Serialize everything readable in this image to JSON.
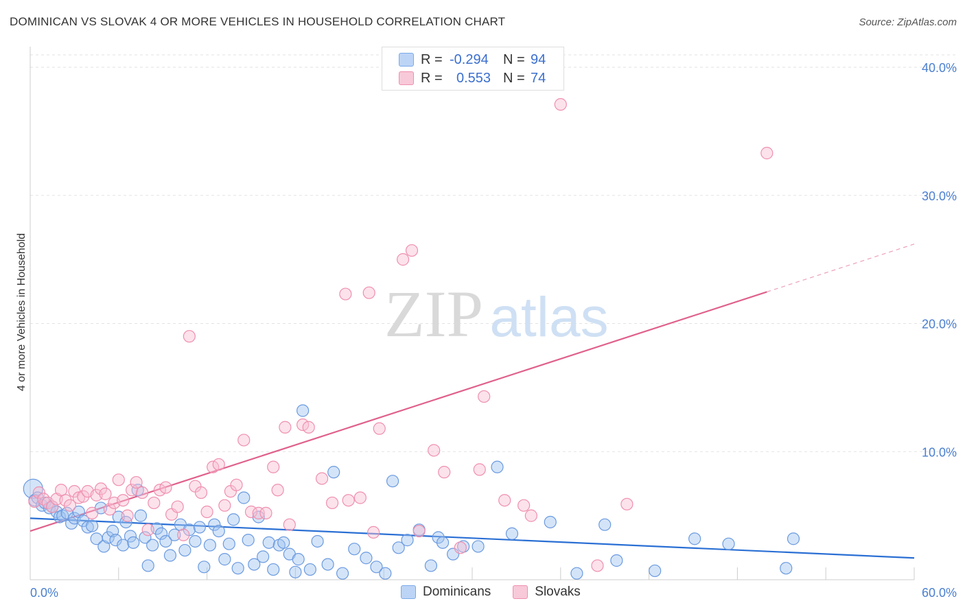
{
  "title": "DOMINICAN VS SLOVAK 4 OR MORE VEHICLES IN HOUSEHOLD CORRELATION CHART",
  "source": "Source: ZipAtlas.com",
  "watermark": {
    "zip": "ZIP",
    "atlas": "atlas"
  },
  "legend": {
    "rows": [
      {
        "r_label": "R =",
        "r_value": "-0.294",
        "n_label": "N =",
        "n_value": "94",
        "color": "#7aaae8",
        "fill": "#bcd4f6"
      },
      {
        "r_label": "R =",
        "r_value": "0.553",
        "n_label": "N =",
        "n_value": "74",
        "color": "#ef8fae",
        "fill": "#f8c9d8"
      }
    ],
    "bottom": [
      "Dominicans",
      "Slovaks"
    ]
  },
  "chart_data": {
    "type": "scatter",
    "ylabel": "4 or more Vehicles in Household",
    "xlim": [
      0,
      60
    ],
    "ylim": [
      0,
      40
    ],
    "x_tick_labels": [
      "0.0%",
      "60.0%"
    ],
    "y_ticks": [
      10,
      20,
      30,
      40
    ],
    "y_tick_labels": [
      "10.0%",
      "20.0%",
      "30.0%",
      "40.0%"
    ],
    "grid": true,
    "series": [
      {
        "name": "Dominicans",
        "color": "#6a9ae0",
        "fill": "rgba(160,195,240,0.45)",
        "trend": {
          "x0": 0,
          "y0": 4.8,
          "x1": 60,
          "y1": 1.7,
          "dash_from": 60
        },
        "trend_color": "#2a6fd4",
        "points": [
          [
            0.2,
            7.1
          ],
          [
            0.3,
            6.2
          ],
          [
            0.5,
            6.4
          ],
          [
            0.8,
            5.8
          ],
          [
            1.0,
            6.0
          ],
          [
            1.3,
            5.6
          ],
          [
            1.5,
            5.7
          ],
          [
            1.8,
            5.3
          ],
          [
            2.0,
            4.9
          ],
          [
            2.2,
            5.0
          ],
          [
            2.5,
            5.2
          ],
          [
            2.8,
            4.4
          ],
          [
            3.0,
            4.8
          ],
          [
            3.3,
            5.3
          ],
          [
            3.6,
            4.6
          ],
          [
            3.9,
            4.1
          ],
          [
            4.2,
            4.2
          ],
          [
            4.5,
            3.2
          ],
          [
            4.8,
            5.6
          ],
          [
            5.0,
            2.6
          ],
          [
            5.3,
            3.3
          ],
          [
            5.6,
            3.8
          ],
          [
            5.8,
            3.1
          ],
          [
            6.0,
            4.9
          ],
          [
            6.3,
            2.7
          ],
          [
            6.5,
            4.5
          ],
          [
            6.8,
            3.4
          ],
          [
            7.0,
            2.9
          ],
          [
            7.3,
            7.0
          ],
          [
            7.5,
            5.0
          ],
          [
            7.8,
            3.3
          ],
          [
            8.0,
            1.1
          ],
          [
            8.3,
            2.7
          ],
          [
            8.6,
            4.0
          ],
          [
            8.9,
            3.6
          ],
          [
            9.2,
            3.0
          ],
          [
            9.5,
            1.9
          ],
          [
            9.8,
            3.5
          ],
          [
            10.2,
            4.3
          ],
          [
            10.5,
            2.3
          ],
          [
            10.8,
            3.9
          ],
          [
            11.2,
            3.0
          ],
          [
            11.5,
            4.1
          ],
          [
            11.8,
            1.0
          ],
          [
            12.2,
            2.7
          ],
          [
            12.5,
            4.3
          ],
          [
            12.8,
            3.8
          ],
          [
            13.2,
            1.6
          ],
          [
            13.5,
            2.8
          ],
          [
            13.8,
            4.7
          ],
          [
            14.1,
            0.9
          ],
          [
            14.5,
            6.4
          ],
          [
            14.8,
            3.1
          ],
          [
            15.2,
            1.2
          ],
          [
            15.5,
            4.9
          ],
          [
            15.8,
            1.8
          ],
          [
            16.2,
            2.9
          ],
          [
            16.5,
            0.8
          ],
          [
            16.9,
            2.7
          ],
          [
            17.2,
            2.9
          ],
          [
            17.6,
            2.0
          ],
          [
            18.0,
            0.6
          ],
          [
            18.2,
            1.6
          ],
          [
            18.5,
            13.2
          ],
          [
            19.0,
            0.8
          ],
          [
            19.5,
            3.0
          ],
          [
            20.2,
            1.2
          ],
          [
            20.6,
            8.4
          ],
          [
            21.2,
            0.5
          ],
          [
            22.0,
            2.4
          ],
          [
            22.8,
            1.7
          ],
          [
            23.5,
            1.0
          ],
          [
            24.1,
            0.5
          ],
          [
            24.6,
            7.7
          ],
          [
            25.0,
            2.5
          ],
          [
            25.6,
            3.1
          ],
          [
            26.4,
            3.9
          ],
          [
            27.2,
            1.1
          ],
          [
            27.7,
            3.3
          ],
          [
            28.0,
            2.9
          ],
          [
            28.7,
            2.0
          ],
          [
            29.4,
            2.6
          ],
          [
            30.4,
            2.6
          ],
          [
            31.7,
            8.8
          ],
          [
            32.7,
            3.6
          ],
          [
            35.3,
            4.5
          ],
          [
            37.1,
            0.5
          ],
          [
            39.0,
            4.3
          ],
          [
            39.8,
            1.5
          ],
          [
            42.4,
            0.7
          ],
          [
            45.1,
            3.2
          ],
          [
            47.4,
            2.8
          ],
          [
            51.3,
            0.9
          ],
          [
            51.8,
            3.2
          ]
        ]
      },
      {
        "name": "Slovaks",
        "color": "#ef8fae",
        "fill": "rgba(248,190,210,0.45)",
        "trend": {
          "x0": 0,
          "y0": 3.8,
          "x1": 60,
          "y1": 26.2,
          "dash_from": 50
        },
        "trend_color": "#e0608c",
        "points": [
          [
            0.3,
            6.1
          ],
          [
            0.6,
            6.8
          ],
          [
            0.9,
            6.3
          ],
          [
            1.2,
            6.0
          ],
          [
            1.5,
            5.7
          ],
          [
            1.8,
            6.3
          ],
          [
            2.1,
            7.0
          ],
          [
            2.4,
            6.2
          ],
          [
            2.7,
            5.8
          ],
          [
            3.0,
            6.9
          ],
          [
            3.3,
            6.4
          ],
          [
            3.6,
            6.5
          ],
          [
            3.9,
            6.9
          ],
          [
            4.2,
            5.2
          ],
          [
            4.5,
            6.6
          ],
          [
            4.8,
            7.1
          ],
          [
            5.1,
            6.7
          ],
          [
            5.4,
            5.5
          ],
          [
            5.7,
            6.0
          ],
          [
            6.0,
            7.8
          ],
          [
            6.3,
            6.2
          ],
          [
            6.6,
            5.0
          ],
          [
            6.9,
            7.0
          ],
          [
            7.2,
            7.6
          ],
          [
            7.6,
            6.8
          ],
          [
            8.0,
            3.9
          ],
          [
            8.4,
            6.0
          ],
          [
            8.8,
            7.0
          ],
          [
            9.2,
            7.2
          ],
          [
            9.6,
            5.1
          ],
          [
            10.0,
            5.7
          ],
          [
            10.4,
            3.5
          ],
          [
            10.8,
            19.0
          ],
          [
            11.2,
            7.3
          ],
          [
            11.6,
            6.8
          ],
          [
            12.0,
            5.3
          ],
          [
            12.4,
            8.8
          ],
          [
            12.8,
            9.0
          ],
          [
            13.2,
            5.8
          ],
          [
            13.6,
            6.9
          ],
          [
            14.0,
            7.4
          ],
          [
            14.5,
            10.9
          ],
          [
            15.0,
            5.3
          ],
          [
            15.5,
            5.2
          ],
          [
            16.0,
            5.2
          ],
          [
            16.5,
            8.8
          ],
          [
            16.8,
            7.0
          ],
          [
            17.3,
            11.9
          ],
          [
            17.6,
            4.3
          ],
          [
            18.5,
            12.1
          ],
          [
            18.9,
            11.9
          ],
          [
            19.8,
            7.9
          ],
          [
            20.5,
            6.0
          ],
          [
            21.4,
            22.3
          ],
          [
            21.6,
            6.2
          ],
          [
            22.4,
            6.4
          ],
          [
            23.0,
            22.4
          ],
          [
            23.3,
            3.7
          ],
          [
            23.7,
            11.8
          ],
          [
            25.3,
            25.0
          ],
          [
            25.9,
            25.7
          ],
          [
            26.4,
            3.8
          ],
          [
            27.4,
            10.1
          ],
          [
            28.1,
            8.4
          ],
          [
            29.2,
            2.5
          ],
          [
            30.5,
            8.6
          ],
          [
            30.8,
            14.3
          ],
          [
            32.2,
            6.2
          ],
          [
            33.5,
            5.8
          ],
          [
            34.0,
            5.0
          ],
          [
            36.0,
            37.1
          ],
          [
            38.5,
            1.1
          ],
          [
            40.5,
            5.9
          ],
          [
            50.0,
            33.3
          ]
        ]
      }
    ]
  }
}
